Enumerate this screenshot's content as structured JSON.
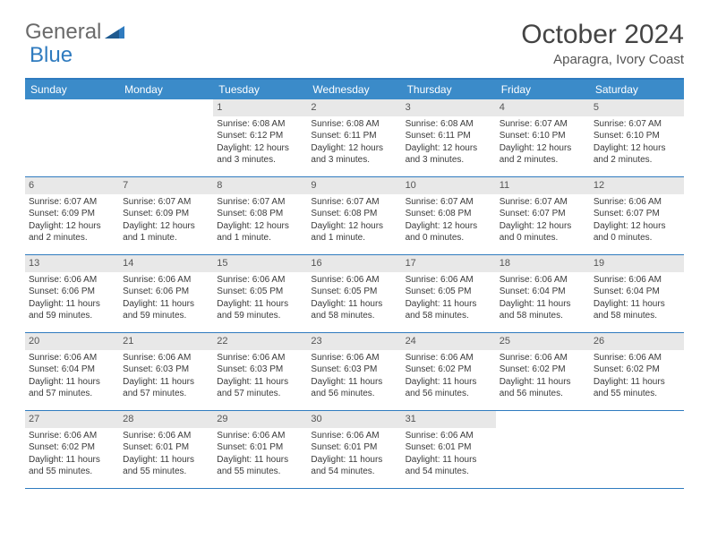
{
  "brand": {
    "part1": "General",
    "part2": "Blue"
  },
  "title": "October 2024",
  "location": "Aparagra, Ivory Coast",
  "colors": {
    "header_bar": "#3b8bc9",
    "accent_border": "#2f7bbf",
    "daynum_bg": "#e8e8e8",
    "logo_gray": "#6a6a6a",
    "logo_blue": "#2f7bbf"
  },
  "weekdays": [
    "Sunday",
    "Monday",
    "Tuesday",
    "Wednesday",
    "Thursday",
    "Friday",
    "Saturday"
  ],
  "weeks": [
    [
      {
        "n": "",
        "empty": true
      },
      {
        "n": "",
        "empty": true
      },
      {
        "n": "1",
        "sunrise": "Sunrise: 6:08 AM",
        "sunset": "Sunset: 6:12 PM",
        "daylight": "Daylight: 12 hours and 3 minutes."
      },
      {
        "n": "2",
        "sunrise": "Sunrise: 6:08 AM",
        "sunset": "Sunset: 6:11 PM",
        "daylight": "Daylight: 12 hours and 3 minutes."
      },
      {
        "n": "3",
        "sunrise": "Sunrise: 6:08 AM",
        "sunset": "Sunset: 6:11 PM",
        "daylight": "Daylight: 12 hours and 3 minutes."
      },
      {
        "n": "4",
        "sunrise": "Sunrise: 6:07 AM",
        "sunset": "Sunset: 6:10 PM",
        "daylight": "Daylight: 12 hours and 2 minutes."
      },
      {
        "n": "5",
        "sunrise": "Sunrise: 6:07 AM",
        "sunset": "Sunset: 6:10 PM",
        "daylight": "Daylight: 12 hours and 2 minutes."
      }
    ],
    [
      {
        "n": "6",
        "sunrise": "Sunrise: 6:07 AM",
        "sunset": "Sunset: 6:09 PM",
        "daylight": "Daylight: 12 hours and 2 minutes."
      },
      {
        "n": "7",
        "sunrise": "Sunrise: 6:07 AM",
        "sunset": "Sunset: 6:09 PM",
        "daylight": "Daylight: 12 hours and 1 minute."
      },
      {
        "n": "8",
        "sunrise": "Sunrise: 6:07 AM",
        "sunset": "Sunset: 6:08 PM",
        "daylight": "Daylight: 12 hours and 1 minute."
      },
      {
        "n": "9",
        "sunrise": "Sunrise: 6:07 AM",
        "sunset": "Sunset: 6:08 PM",
        "daylight": "Daylight: 12 hours and 1 minute."
      },
      {
        "n": "10",
        "sunrise": "Sunrise: 6:07 AM",
        "sunset": "Sunset: 6:08 PM",
        "daylight": "Daylight: 12 hours and 0 minutes."
      },
      {
        "n": "11",
        "sunrise": "Sunrise: 6:07 AM",
        "sunset": "Sunset: 6:07 PM",
        "daylight": "Daylight: 12 hours and 0 minutes."
      },
      {
        "n": "12",
        "sunrise": "Sunrise: 6:06 AM",
        "sunset": "Sunset: 6:07 PM",
        "daylight": "Daylight: 12 hours and 0 minutes."
      }
    ],
    [
      {
        "n": "13",
        "sunrise": "Sunrise: 6:06 AM",
        "sunset": "Sunset: 6:06 PM",
        "daylight": "Daylight: 11 hours and 59 minutes."
      },
      {
        "n": "14",
        "sunrise": "Sunrise: 6:06 AM",
        "sunset": "Sunset: 6:06 PM",
        "daylight": "Daylight: 11 hours and 59 minutes."
      },
      {
        "n": "15",
        "sunrise": "Sunrise: 6:06 AM",
        "sunset": "Sunset: 6:05 PM",
        "daylight": "Daylight: 11 hours and 59 minutes."
      },
      {
        "n": "16",
        "sunrise": "Sunrise: 6:06 AM",
        "sunset": "Sunset: 6:05 PM",
        "daylight": "Daylight: 11 hours and 58 minutes."
      },
      {
        "n": "17",
        "sunrise": "Sunrise: 6:06 AM",
        "sunset": "Sunset: 6:05 PM",
        "daylight": "Daylight: 11 hours and 58 minutes."
      },
      {
        "n": "18",
        "sunrise": "Sunrise: 6:06 AM",
        "sunset": "Sunset: 6:04 PM",
        "daylight": "Daylight: 11 hours and 58 minutes."
      },
      {
        "n": "19",
        "sunrise": "Sunrise: 6:06 AM",
        "sunset": "Sunset: 6:04 PM",
        "daylight": "Daylight: 11 hours and 58 minutes."
      }
    ],
    [
      {
        "n": "20",
        "sunrise": "Sunrise: 6:06 AM",
        "sunset": "Sunset: 6:04 PM",
        "daylight": "Daylight: 11 hours and 57 minutes."
      },
      {
        "n": "21",
        "sunrise": "Sunrise: 6:06 AM",
        "sunset": "Sunset: 6:03 PM",
        "daylight": "Daylight: 11 hours and 57 minutes."
      },
      {
        "n": "22",
        "sunrise": "Sunrise: 6:06 AM",
        "sunset": "Sunset: 6:03 PM",
        "daylight": "Daylight: 11 hours and 57 minutes."
      },
      {
        "n": "23",
        "sunrise": "Sunrise: 6:06 AM",
        "sunset": "Sunset: 6:03 PM",
        "daylight": "Daylight: 11 hours and 56 minutes."
      },
      {
        "n": "24",
        "sunrise": "Sunrise: 6:06 AM",
        "sunset": "Sunset: 6:02 PM",
        "daylight": "Daylight: 11 hours and 56 minutes."
      },
      {
        "n": "25",
        "sunrise": "Sunrise: 6:06 AM",
        "sunset": "Sunset: 6:02 PM",
        "daylight": "Daylight: 11 hours and 56 minutes."
      },
      {
        "n": "26",
        "sunrise": "Sunrise: 6:06 AM",
        "sunset": "Sunset: 6:02 PM",
        "daylight": "Daylight: 11 hours and 55 minutes."
      }
    ],
    [
      {
        "n": "27",
        "sunrise": "Sunrise: 6:06 AM",
        "sunset": "Sunset: 6:02 PM",
        "daylight": "Daylight: 11 hours and 55 minutes."
      },
      {
        "n": "28",
        "sunrise": "Sunrise: 6:06 AM",
        "sunset": "Sunset: 6:01 PM",
        "daylight": "Daylight: 11 hours and 55 minutes."
      },
      {
        "n": "29",
        "sunrise": "Sunrise: 6:06 AM",
        "sunset": "Sunset: 6:01 PM",
        "daylight": "Daylight: 11 hours and 55 minutes."
      },
      {
        "n": "30",
        "sunrise": "Sunrise: 6:06 AM",
        "sunset": "Sunset: 6:01 PM",
        "daylight": "Daylight: 11 hours and 54 minutes."
      },
      {
        "n": "31",
        "sunrise": "Sunrise: 6:06 AM",
        "sunset": "Sunset: 6:01 PM",
        "daylight": "Daylight: 11 hours and 54 minutes."
      },
      {
        "n": "",
        "empty": true
      },
      {
        "n": "",
        "empty": true
      }
    ]
  ]
}
